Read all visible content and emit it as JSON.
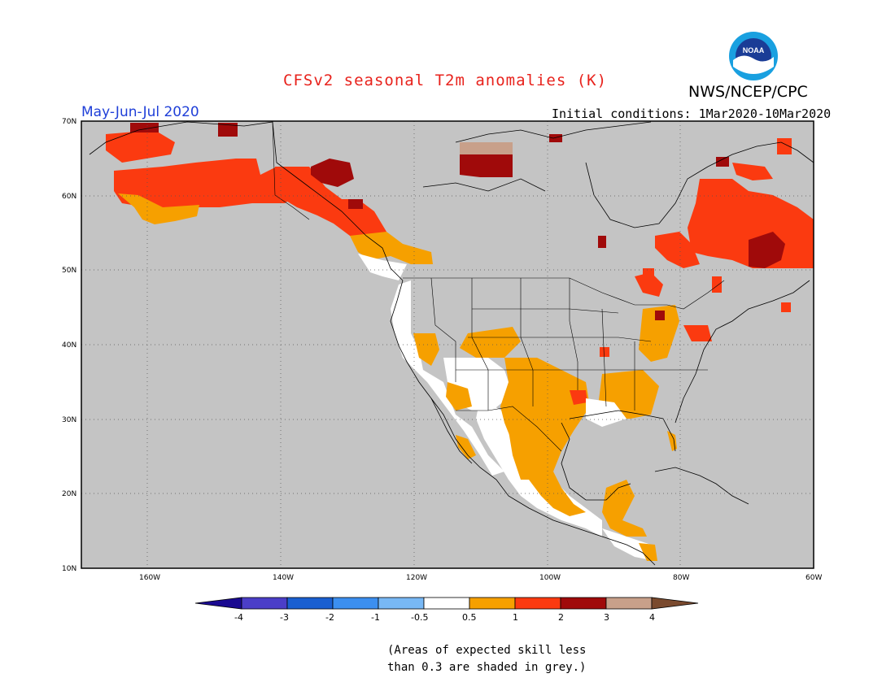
{
  "title": "CFSv2 seasonal T2m anomalies (K)",
  "agency": "NWS/NCEP/CPC",
  "logo_text": "NOAA",
  "period": "May-Jun-Jul 2020",
  "initial_conditions": "Initial conditions: 1Mar2020-10Mar2020",
  "note_line1": "(Areas of expected skill less",
  "note_line2": "than 0.3 are shaded in grey.)",
  "lat_labels": [
    "70N",
    "60N",
    "50N",
    "40N",
    "30N",
    "20N",
    "10N"
  ],
  "lon_labels": [
    "160W",
    "140W",
    "120W",
    "100W",
    "80W",
    "60W"
  ],
  "colorbar": {
    "labels": [
      "-4",
      "-3",
      "-2",
      "-1",
      "-0.5",
      "0.5",
      "1",
      "2",
      "3",
      "4"
    ],
    "colors": [
      "#1a0a91",
      "#4b3ec8",
      "#1a5fd1",
      "#3c8ff0",
      "#78b8f5",
      "#ffffff",
      "#f6a000",
      "#fb3a10",
      "#a00a0a",
      "#c8a08a",
      "#7a4a2e"
    ]
  },
  "colors": {
    "grey_skill": "#c4c4c4",
    "anom_05_1": "#f6a000",
    "anom_1_2": "#fb3a10",
    "anom_2_3": "#a00a0a",
    "anom_3_4": "#c8a08a",
    "near_zero": "#ffffff"
  }
}
